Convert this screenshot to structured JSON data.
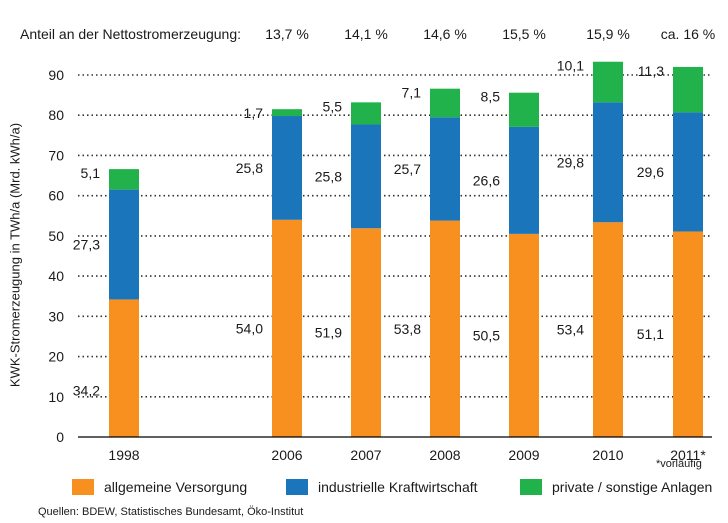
{
  "share_header": {
    "label": "Anteil an der Nettostromerzeugung:",
    "values": [
      "13,7 %",
      "14,1 %",
      "14,6 %",
      "15,5 %",
      "15,9 %",
      "ca. 16 %"
    ]
  },
  "footnote": "*vorläufig",
  "source": "Quellen: BDEW, Statistisches Bundesamt, Öko-Institut",
  "chart_data": {
    "type": "bar",
    "stacked": true,
    "categories": [
      "1998",
      "2006",
      "2007",
      "2008",
      "2009",
      "2010",
      "2011*"
    ],
    "ylabel": "KWK-Stromerzeugung in TWh/a (Mrd. kWh/a)",
    "ylim": [
      0,
      90
    ],
    "yticks": [
      0,
      10,
      20,
      30,
      40,
      50,
      60,
      70,
      80,
      90
    ],
    "grid": true,
    "legend_position": "bottom",
    "series": [
      {
        "name": "allgemeine Versorgung",
        "color": "#f7901e",
        "values": [
          34.2,
          54.0,
          51.9,
          53.8,
          50.5,
          53.4,
          51.1
        ],
        "labels": [
          "34,2",
          "54,0",
          "51,9",
          "53,8",
          "50,5",
          "53,4",
          "51,1"
        ]
      },
      {
        "name": "industrielle Kraftwirtschaft",
        "color": "#1a75bb",
        "values": [
          27.3,
          25.8,
          25.8,
          25.7,
          26.6,
          29.8,
          29.6
        ],
        "labels": [
          "27,3",
          "25,8",
          "25,8",
          "25,7",
          "26,6",
          "29,8",
          "29,6"
        ]
      },
      {
        "name": "private / sonstige Anlagen",
        "color": "#21b24b",
        "values": [
          5.1,
          1.7,
          5.5,
          7.1,
          8.5,
          10.1,
          11.3
        ],
        "labels": [
          "5,1",
          "1,7",
          "5,5",
          "7,1",
          "8,5",
          "10,1",
          "11,3"
        ]
      }
    ]
  }
}
